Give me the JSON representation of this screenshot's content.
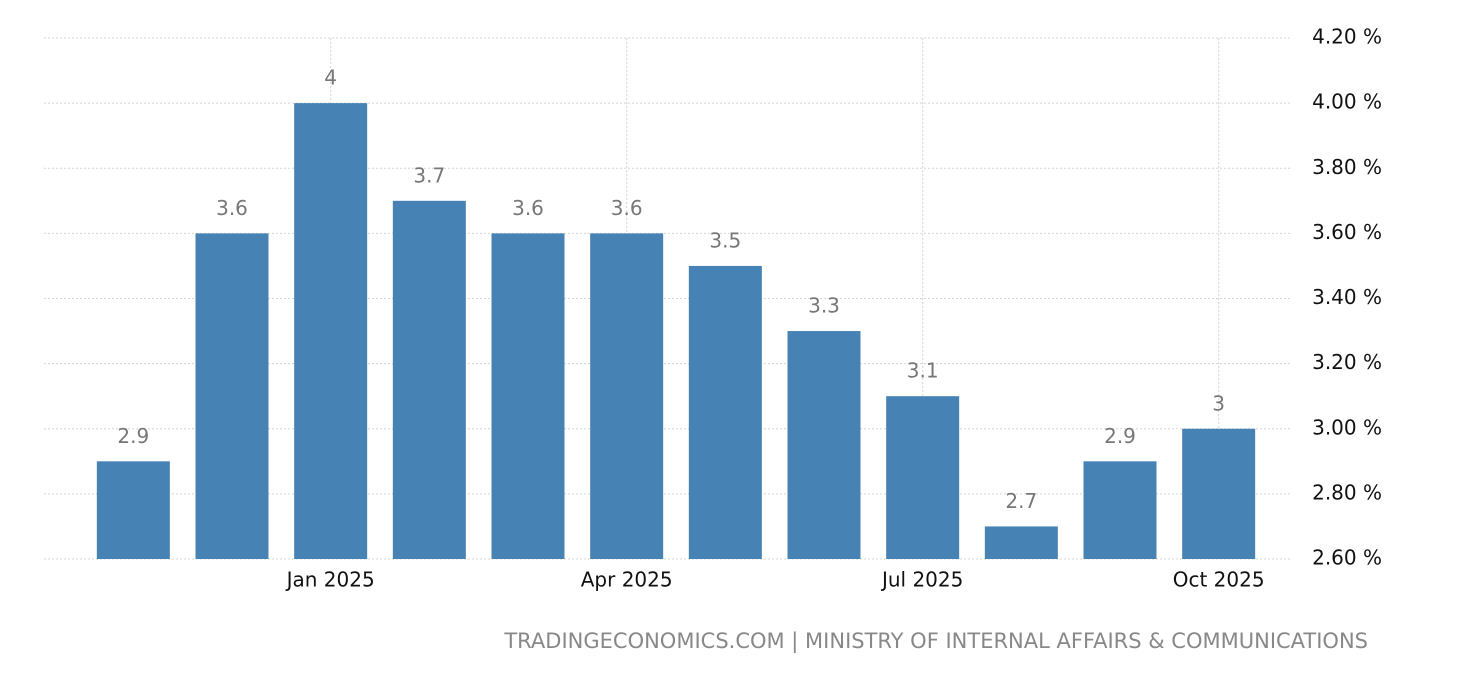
{
  "chart_data": {
    "type": "bar",
    "categories": [
      null,
      null,
      "Jan 2025",
      null,
      null,
      "Apr 2025",
      null,
      null,
      "Jul 2025",
      null,
      null,
      "Oct 2025"
    ],
    "values": [
      2.9,
      3.6,
      4,
      3.7,
      3.6,
      3.6,
      3.5,
      3.3,
      3.1,
      2.7,
      2.9,
      3
    ],
    "color": "#4682b4",
    "ylim": [
      2.6,
      4.2
    ],
    "yticks": [
      {
        "value": 2.6,
        "label": "2.60 %"
      },
      {
        "value": 2.8,
        "label": "2.80 %"
      },
      {
        "value": 3.0,
        "label": "3.00 %"
      },
      {
        "value": 3.2,
        "label": "3.20 %"
      },
      {
        "value": 3.4,
        "label": "3.40 %"
      },
      {
        "value": 3.6,
        "label": "3.60 %"
      },
      {
        "value": 3.8,
        "label": "3.80 %"
      },
      {
        "value": 4.0,
        "label": "4.00 %"
      },
      {
        "value": 4.2,
        "label": "4.20 %"
      }
    ],
    "grid": true,
    "source": "TRADINGECONOMICS.COM | MINISTRY OF INTERNAL AFFAIRS & COMMUNICATIONS"
  }
}
